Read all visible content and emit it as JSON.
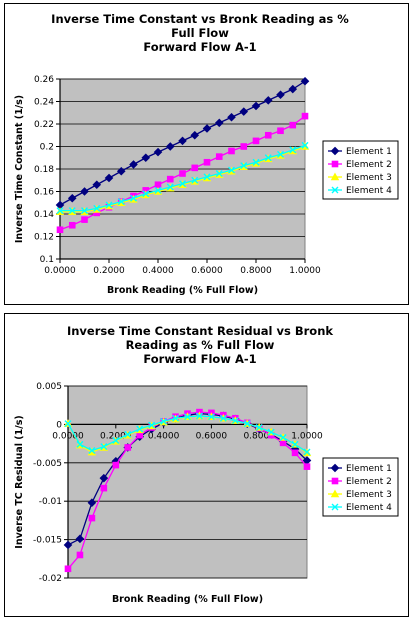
{
  "chart_data": [
    {
      "type": "line",
      "title_lines": [
        "Inverse Time Constant vs Bronk Reading as %",
        "Full Flow",
        "Forward Flow A-1"
      ],
      "xlabel": "Bronk Reading (% Full Flow)",
      "ylabel": "Inverse Time Constant (1/s)",
      "xlim": [
        0,
        1
      ],
      "ylim": [
        0.1,
        0.26
      ],
      "x_ticks": [
        0,
        0.2,
        0.4,
        0.6,
        0.8,
        1.0
      ],
      "x_tick_labels": [
        "0.0000",
        "0.2000",
        "0.4000",
        "0.6000",
        "0.8000",
        "1.0000"
      ],
      "y_ticks": [
        0.1,
        0.12,
        0.14,
        0.16,
        0.18,
        0.2,
        0.22,
        0.24,
        0.26
      ],
      "y_tick_labels": [
        "0.1",
        "0.12",
        "0.14",
        "0.16",
        "0.18",
        "0.2",
        "0.22",
        "0.24",
        "0.26"
      ],
      "grid": "horizontal",
      "legend_position": "right",
      "x": [
        0,
        0.05,
        0.1,
        0.15,
        0.2,
        0.25,
        0.3,
        0.35,
        0.4,
        0.45,
        0.5,
        0.55,
        0.6,
        0.65,
        0.7,
        0.75,
        0.8,
        0.85,
        0.9,
        0.95,
        1.0
      ],
      "series": [
        {
          "name": "Element 1",
          "color": "#000080",
          "marker": "diamond",
          "values": [
            0.148,
            0.154,
            0.16,
            0.166,
            0.172,
            0.178,
            0.184,
            0.19,
            0.195,
            0.2,
            0.205,
            0.21,
            0.216,
            0.221,
            0.226,
            0.231,
            0.236,
            0.241,
            0.246,
            0.251,
            0.258
          ]
        },
        {
          "name": "Element 2",
          "color": "#ff00ff",
          "marker": "square",
          "values": [
            0.126,
            0.13,
            0.135,
            0.141,
            0.146,
            0.151,
            0.156,
            0.161,
            0.166,
            0.171,
            0.176,
            0.181,
            0.186,
            0.191,
            0.196,
            0.2,
            0.205,
            0.21,
            0.214,
            0.219,
            0.227
          ]
        },
        {
          "name": "Element 3",
          "color": "#ffff00",
          "marker": "triangle",
          "values": [
            0.142,
            0.142,
            0.142,
            0.144,
            0.147,
            0.15,
            0.153,
            0.157,
            0.16,
            0.163,
            0.166,
            0.169,
            0.172,
            0.175,
            0.178,
            0.182,
            0.185,
            0.189,
            0.192,
            0.196,
            0.2
          ]
        },
        {
          "name": "Element 4",
          "color": "#00ffff",
          "marker": "x",
          "values": [
            0.143,
            0.143,
            0.143,
            0.145,
            0.148,
            0.151,
            0.154,
            0.158,
            0.161,
            0.164,
            0.167,
            0.17,
            0.173,
            0.176,
            0.179,
            0.183,
            0.186,
            0.19,
            0.193,
            0.197,
            0.201
          ]
        }
      ]
    },
    {
      "type": "line",
      "title_lines": [
        "Inverse Time Constant Residual vs Bronk",
        "Reading as % Full Flow",
        "Forward Flow A-1"
      ],
      "xlabel": "Bronk Reading (% Full Flow)",
      "ylabel": "Inverse TC Residual (1/s)",
      "xlim": [
        0,
        1
      ],
      "ylim": [
        -0.02,
        0.005
      ],
      "x_ticks": [
        0,
        0.2,
        0.4,
        0.6,
        0.8,
        1.0
      ],
      "x_tick_labels": [
        "0.0000",
        "0.2000",
        "0.4000",
        "0.6000",
        "0.8000",
        "1.0000"
      ],
      "y_ticks": [
        -0.02,
        -0.015,
        -0.01,
        -0.005,
        0,
        0.005
      ],
      "y_tick_labels": [
        "-0.02",
        "-0.015",
        "-0.01",
        "-0.005",
        "0",
        "0.005"
      ],
      "grid": "horizontal",
      "legend_position": "right",
      "x": [
        0,
        0.05,
        0.1,
        0.15,
        0.2,
        0.25,
        0.3,
        0.35,
        0.4,
        0.45,
        0.5,
        0.55,
        0.6,
        0.65,
        0.7,
        0.75,
        0.8,
        0.85,
        0.9,
        0.95,
        1.0
      ],
      "series": [
        {
          "name": "Element 1",
          "color": "#000080",
          "marker": "diamond",
          "values": [
            -0.0157,
            -0.0149,
            -0.0102,
            -0.007,
            -0.0048,
            -0.003,
            -0.0016,
            -0.0006,
            0.0002,
            0.0008,
            0.0012,
            0.0014,
            0.0013,
            0.0011,
            0.0007,
            0.0001,
            -0.0006,
            -0.0013,
            -0.0022,
            -0.0032,
            -0.0047
          ]
        },
        {
          "name": "Element 2",
          "color": "#ff00ff",
          "marker": "square",
          "values": [
            -0.0188,
            -0.017,
            -0.0122,
            -0.0083,
            -0.0053,
            -0.003,
            -0.0014,
            -0.0004,
            0.0004,
            0.001,
            0.0014,
            0.0016,
            0.0015,
            0.0012,
            0.0008,
            0.0002,
            -0.0005,
            -0.0014,
            -0.0024,
            -0.0037,
            -0.0055
          ]
        },
        {
          "name": "Element 3",
          "color": "#ffff00",
          "marker": "triangle",
          "values": [
            0.0001,
            -0.0027,
            -0.0036,
            -0.003,
            -0.0022,
            -0.0014,
            -0.0007,
            -0.0002,
            0.0003,
            0.0007,
            0.001,
            0.0011,
            0.001,
            0.0008,
            0.0005,
            0.0001,
            -0.0004,
            -0.001,
            -0.0017,
            -0.0026,
            -0.0037
          ]
        },
        {
          "name": "Element 4",
          "color": "#00ffff",
          "marker": "x",
          "values": [
            0.0001,
            -0.0026,
            -0.0034,
            -0.0029,
            -0.0021,
            -0.0013,
            -0.0006,
            -0.0001,
            0.0004,
            0.0008,
            0.001,
            0.0011,
            0.001,
            0.0008,
            0.0005,
            0.0001,
            -0.0004,
            -0.001,
            -0.0017,
            -0.0026,
            -0.0036
          ]
        }
      ]
    }
  ]
}
